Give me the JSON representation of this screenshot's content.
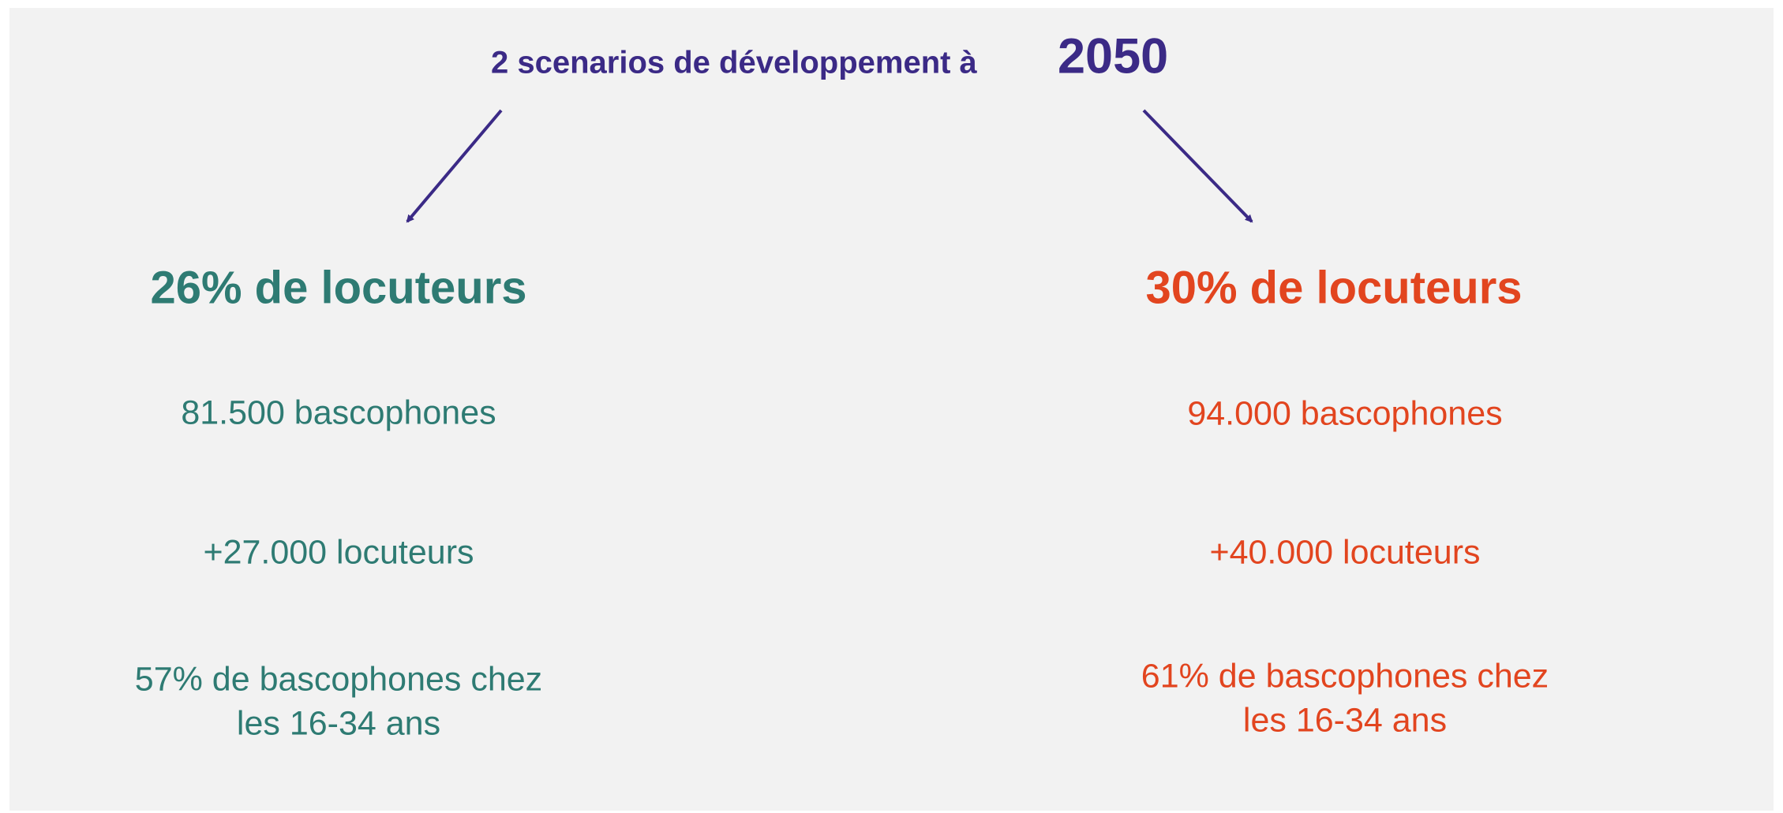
{
  "title": {
    "text": "2 scenarios de développement à",
    "year": "2050"
  },
  "scenarios": [
    {
      "heading": "26% de locuteurs",
      "items": [
        [
          "81.500 bascophones"
        ],
        [
          "+27.000 locuteurs"
        ],
        [
          "57% de bascophones chez",
          "les 16-34 ans"
        ]
      ]
    },
    {
      "heading": "30% de locuteurs",
      "items": [
        [
          "94.000 bascophones"
        ],
        [
          "+40.000 locuteurs"
        ],
        [
          "61% de bascophones chez",
          "les 16-34 ans"
        ]
      ]
    }
  ]
}
